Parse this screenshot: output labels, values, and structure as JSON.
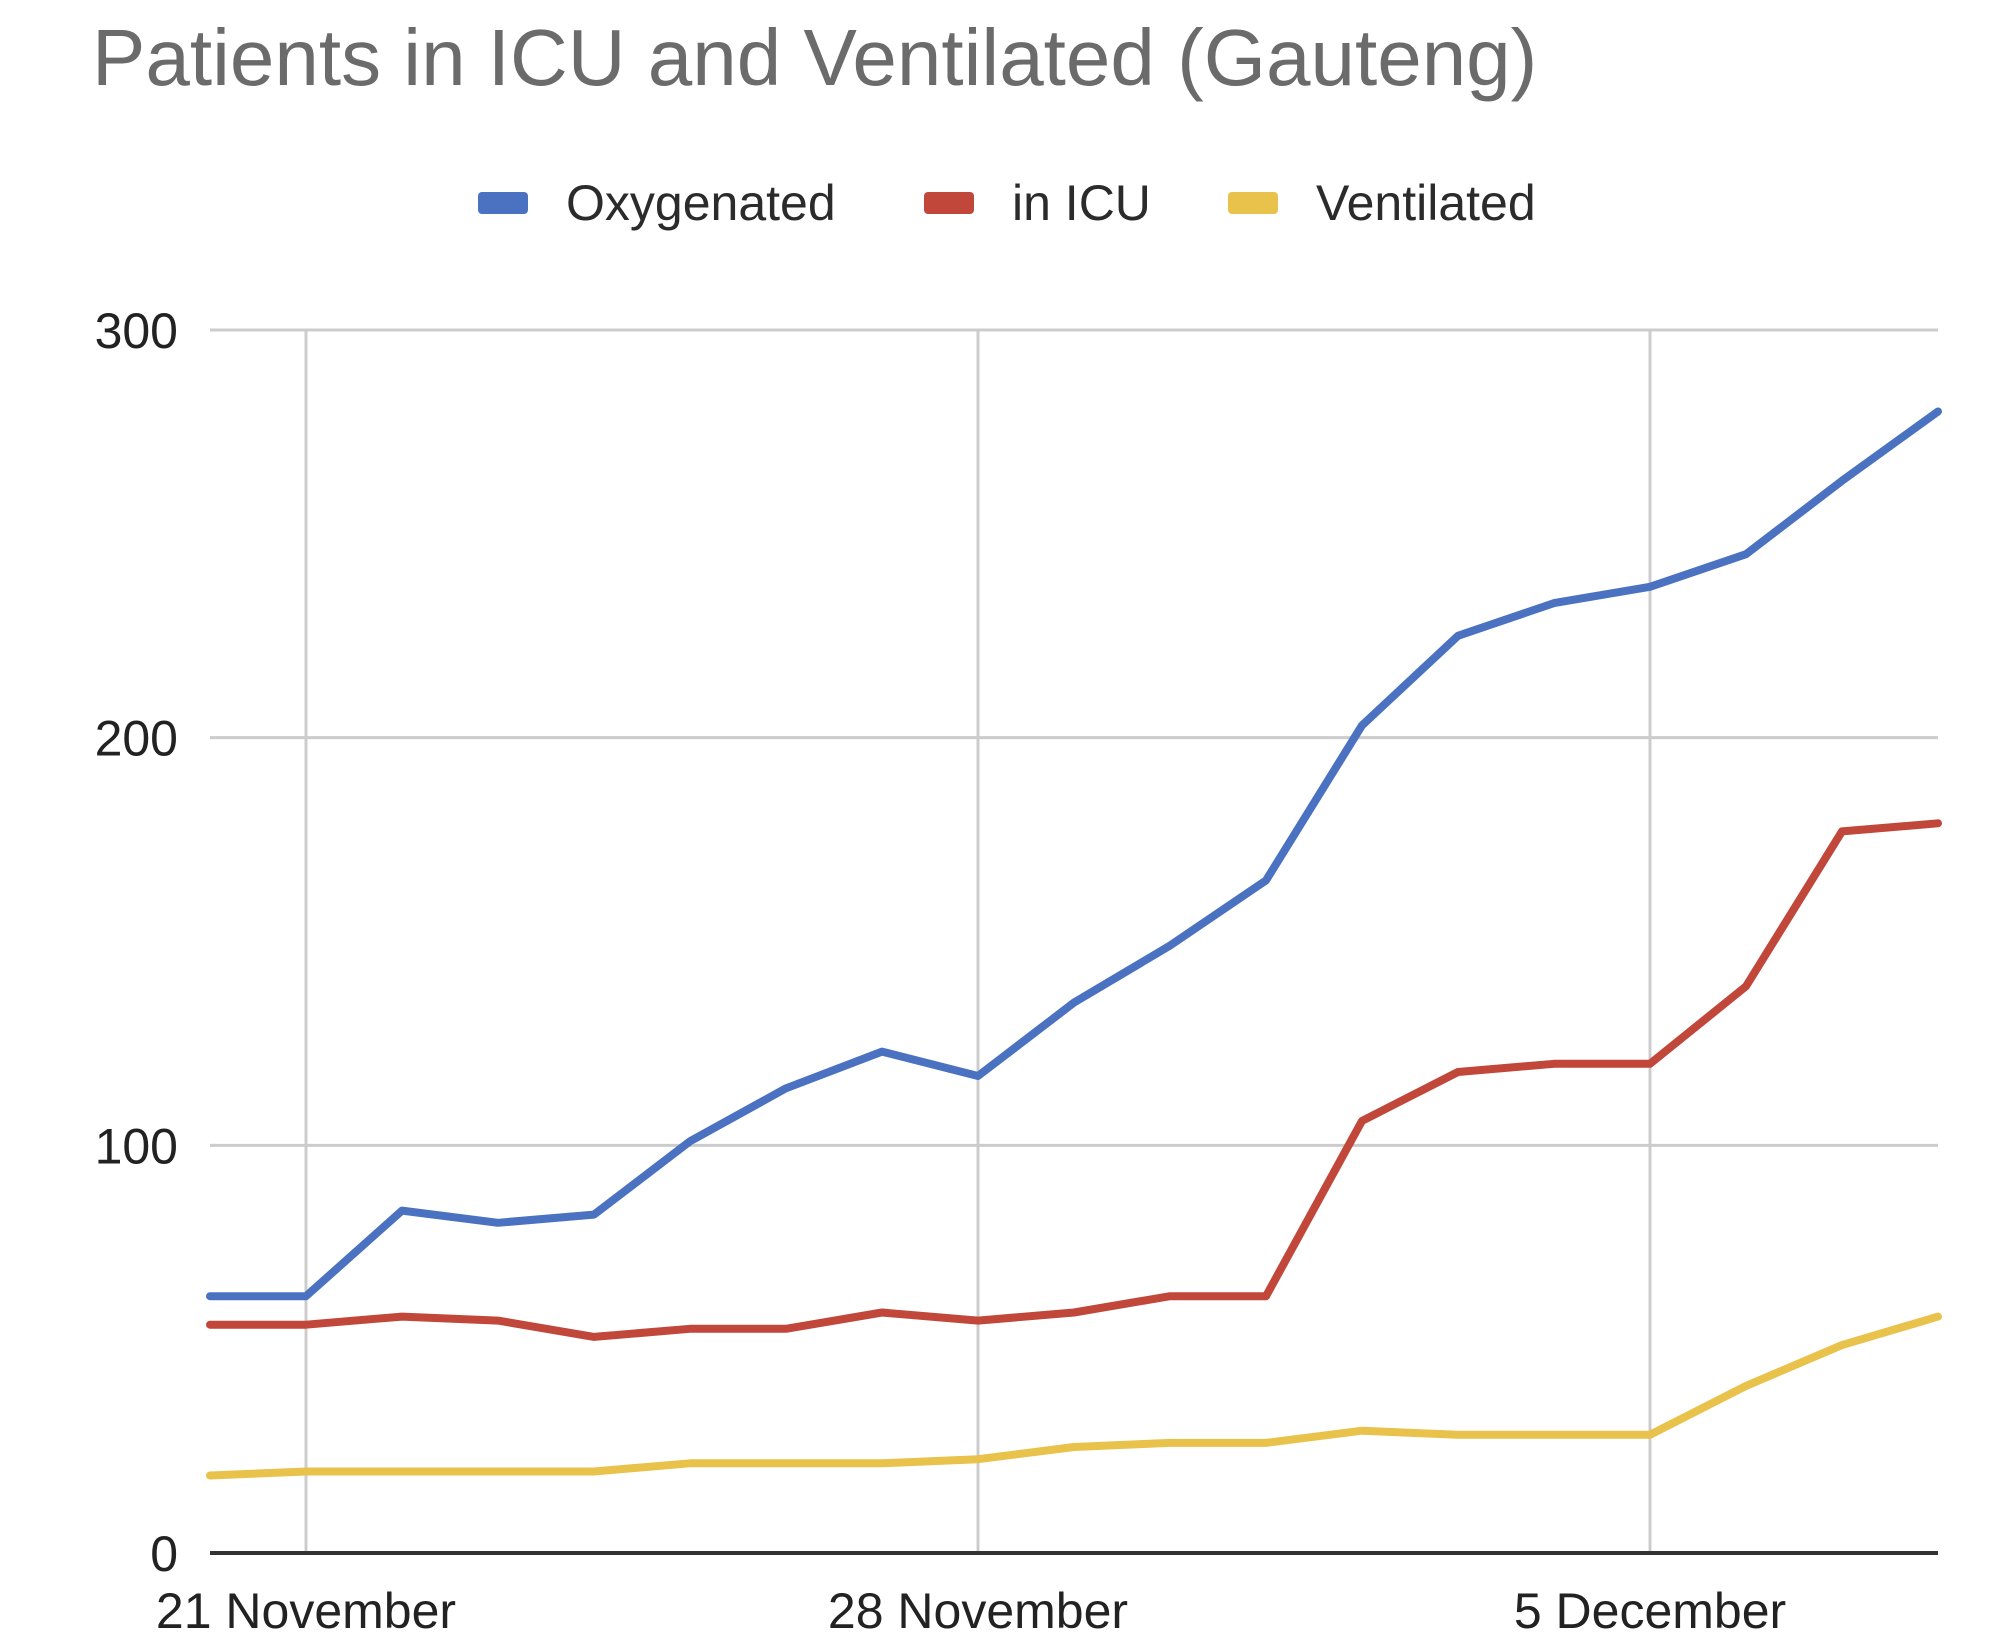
{
  "chart_data": {
    "type": "line",
    "title": "Patients in ICU and Ventilated (Gauteng)",
    "xlabel": "",
    "ylabel": "",
    "ylim": [
      0,
      300
    ],
    "yticks": [
      0,
      100,
      200,
      300
    ],
    "x": [
      "2021-11-20",
      "2021-11-21",
      "2021-11-22",
      "2021-11-23",
      "2021-11-24",
      "2021-11-25",
      "2021-11-26",
      "2021-11-27",
      "2021-11-28",
      "2021-11-29",
      "2021-11-30",
      "2021-12-01",
      "2021-12-02",
      "2021-12-03",
      "2021-12-04",
      "2021-12-05",
      "2021-12-06",
      "2021-12-07",
      "2021-12-08"
    ],
    "xticks": [
      {
        "label": "21 November",
        "x": "2021-11-21"
      },
      {
        "label": "28 November",
        "x": "2021-11-28"
      },
      {
        "label": "5 December",
        "x": "2021-12-05"
      }
    ],
    "grid": true,
    "legend_position": "top",
    "series": [
      {
        "name": "Oxygenated",
        "color": "#4a72c1",
        "values": [
          63,
          63,
          84,
          81,
          83,
          101,
          114,
          123,
          117,
          135,
          149,
          165,
          203,
          225,
          233,
          237,
          245,
          263,
          280
        ]
      },
      {
        "name": "in ICU",
        "color": "#c0473a",
        "values": [
          56,
          56,
          58,
          57,
          53,
          55,
          55,
          59,
          57,
          59,
          63,
          63,
          106,
          118,
          120,
          120,
          139,
          177,
          179
        ]
      },
      {
        "name": "Ventilated",
        "color": "#e8c24a",
        "values": [
          19,
          20,
          20,
          20,
          20,
          22,
          22,
          22,
          23,
          26,
          27,
          27,
          30,
          29,
          29,
          29,
          41,
          51,
          58
        ]
      }
    ]
  }
}
